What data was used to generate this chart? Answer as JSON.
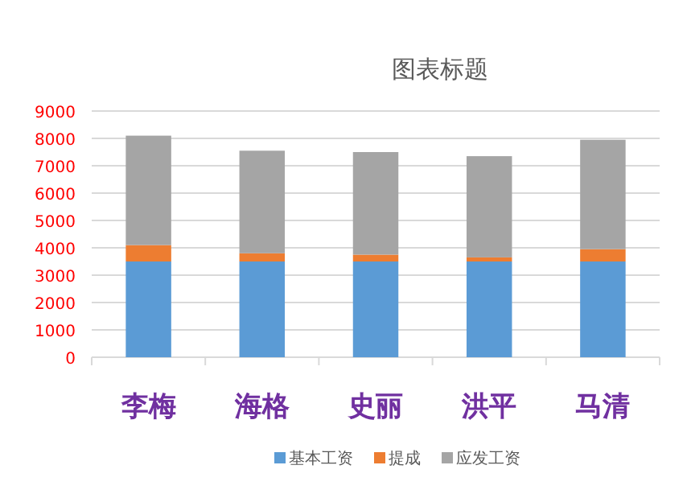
{
  "chart_data": {
    "type": "bar",
    "title": "图表标题",
    "stacked": true,
    "categories": [
      "李梅",
      "海格",
      "史丽",
      "洪平",
      "马清"
    ],
    "series": [
      {
        "name": "基本工资",
        "color": "#5b9bd5",
        "values": [
          3500,
          3500,
          3500,
          3500,
          3500
        ]
      },
      {
        "name": "提成",
        "color": "#ed7d31",
        "values": [
          600,
          300,
          250,
          150,
          450
        ]
      },
      {
        "name": "应发工资",
        "color": "#a5a5a5",
        "values": [
          4000,
          3750,
          3750,
          3700,
          4000
        ]
      }
    ],
    "ylim": [
      0,
      9000
    ],
    "yticks": [
      0,
      1000,
      2000,
      3000,
      4000,
      5000,
      6000,
      7000,
      8000,
      9000
    ],
    "grid": "y",
    "legend": "bottom"
  }
}
